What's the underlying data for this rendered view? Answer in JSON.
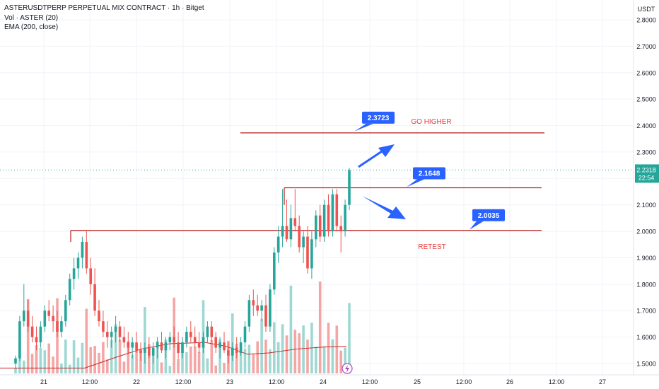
{
  "header": {
    "symbol_line": "ASTERUSDTPERP PERPETUAL MIX CONTRACT · 1h · Bitget",
    "volume_line": "Vol · ASTER (20)",
    "ema_line": "EMA (200, close)"
  },
  "price_axis": {
    "currency": "USDT",
    "last_price": "2.2318",
    "countdown": "22:54"
  },
  "colors": {
    "up": "#26a69a",
    "down": "#ef5350",
    "up_volume": "#9fd8d2",
    "down_volume": "#f4a6a5",
    "level_line": "#b71c1c",
    "callout": "#2962ff",
    "ema": "#c62828"
  },
  "annotations": [
    {
      "text": "2.3723",
      "kind": "callout"
    },
    {
      "text": "2.1648",
      "kind": "callout"
    },
    {
      "text": "2.0035",
      "kind": "callout"
    },
    {
      "text": "GO HIGHER",
      "kind": "note"
    },
    {
      "text": "RETEST",
      "kind": "note"
    }
  ],
  "chart_data": {
    "type": "candlestick",
    "title": "ASTERUSDTPERP PERPETUAL MIX CONTRACT · 1h · Bitget",
    "ylim": [
      1.46,
      2.85
    ],
    "y_ticks": [
      "2.8000",
      "2.7000",
      "2.6000",
      "2.5000",
      "2.4000",
      "2.3000",
      "2.2000",
      "2.1000",
      "2.0000",
      "1.9000",
      "1.8000",
      "1.7000",
      "1.6000",
      "1.5000"
    ],
    "x_ticks": [
      "21",
      "12:00",
      "22",
      "12:00",
      "23",
      "12:00",
      "24",
      "12:00",
      "25",
      "12:00",
      "26",
      "12:00",
      "27"
    ],
    "candles": [
      [
        1.5,
        1.53,
        1.48,
        1.52
      ],
      [
        1.52,
        1.68,
        1.51,
        1.66
      ],
      [
        1.66,
        1.8,
        1.64,
        1.7
      ],
      [
        1.7,
        1.74,
        1.62,
        1.64
      ],
      [
        1.64,
        1.68,
        1.58,
        1.6
      ],
      [
        1.6,
        1.64,
        1.55,
        1.58
      ],
      [
        1.58,
        1.66,
        1.56,
        1.64
      ],
      [
        1.64,
        1.72,
        1.62,
        1.7
      ],
      [
        1.7,
        1.74,
        1.66,
        1.68
      ],
      [
        1.68,
        1.72,
        1.62,
        1.66
      ],
      [
        1.66,
        1.7,
        1.6,
        1.62
      ],
      [
        1.62,
        1.68,
        1.6,
        1.66
      ],
      [
        1.66,
        1.76,
        1.64,
        1.74
      ],
      [
        1.74,
        1.84,
        1.72,
        1.82
      ],
      [
        1.82,
        1.9,
        1.78,
        1.86
      ],
      [
        1.86,
        1.92,
        1.82,
        1.9
      ],
      [
        1.9,
        1.98,
        1.86,
        1.96
      ],
      [
        1.96,
        2.0,
        1.84,
        1.86
      ],
      [
        1.86,
        1.9,
        1.76,
        1.8
      ],
      [
        1.8,
        1.86,
        1.68,
        1.7
      ],
      [
        1.7,
        1.74,
        1.64,
        1.66
      ],
      [
        1.66,
        1.7,
        1.6,
        1.62
      ],
      [
        1.62,
        1.66,
        1.56,
        1.6
      ],
      [
        1.6,
        1.64,
        1.56,
        1.62
      ],
      [
        1.62,
        1.68,
        1.58,
        1.64
      ],
      [
        1.64,
        1.66,
        1.58,
        1.6
      ],
      [
        1.6,
        1.64,
        1.56,
        1.58
      ],
      [
        1.58,
        1.62,
        1.54,
        1.56
      ],
      [
        1.56,
        1.6,
        1.52,
        1.58
      ],
      [
        1.58,
        1.62,
        1.54,
        1.55
      ],
      [
        1.55,
        1.58,
        1.51,
        1.54
      ],
      [
        1.54,
        1.58,
        1.5,
        1.56
      ],
      [
        1.56,
        1.6,
        1.52,
        1.53
      ],
      [
        1.53,
        1.58,
        1.5,
        1.56
      ],
      [
        1.56,
        1.6,
        1.52,
        1.58
      ],
      [
        1.58,
        1.62,
        1.54,
        1.55
      ],
      [
        1.55,
        1.6,
        1.52,
        1.58
      ],
      [
        1.58,
        1.62,
        1.55,
        1.6
      ],
      [
        1.6,
        1.64,
        1.56,
        1.58
      ],
      [
        1.58,
        1.62,
        1.52,
        1.54
      ],
      [
        1.54,
        1.6,
        1.52,
        1.58
      ],
      [
        1.58,
        1.64,
        1.56,
        1.62
      ],
      [
        1.62,
        1.66,
        1.58,
        1.6
      ],
      [
        1.6,
        1.64,
        1.56,
        1.58
      ],
      [
        1.58,
        1.62,
        1.54,
        1.56
      ],
      [
        1.56,
        1.62,
        1.54,
        1.6
      ],
      [
        1.6,
        1.66,
        1.58,
        1.64
      ],
      [
        1.64,
        1.66,
        1.58,
        1.6
      ],
      [
        1.6,
        1.62,
        1.54,
        1.56
      ],
      [
        1.56,
        1.6,
        1.52,
        1.58
      ],
      [
        1.58,
        1.62,
        1.54,
        1.55
      ],
      [
        1.55,
        1.58,
        1.5,
        1.53
      ],
      [
        1.53,
        1.58,
        1.51,
        1.56
      ],
      [
        1.56,
        1.6,
        1.52,
        1.54
      ],
      [
        1.54,
        1.6,
        1.53,
        1.58
      ],
      [
        1.58,
        1.66,
        1.56,
        1.64
      ],
      [
        1.64,
        1.76,
        1.62,
        1.74
      ],
      [
        1.74,
        1.78,
        1.68,
        1.72
      ],
      [
        1.72,
        1.76,
        1.68,
        1.7
      ],
      [
        1.7,
        1.74,
        1.66,
        1.72
      ],
      [
        1.72,
        1.76,
        1.62,
        1.64
      ],
      [
        1.64,
        1.8,
        1.62,
        1.78
      ],
      [
        1.78,
        1.94,
        1.76,
        1.92
      ],
      [
        1.92,
        2.02,
        1.88,
        1.98
      ],
      [
        1.98,
        2.16,
        1.94,
        2.02
      ],
      [
        2.02,
        2.12,
        1.96,
        1.97
      ],
      [
        1.97,
        2.1,
        1.94,
        2.05
      ],
      [
        2.05,
        2.16,
        2.0,
        2.02
      ],
      [
        2.02,
        2.06,
        1.92,
        1.94
      ],
      [
        1.94,
        2.0,
        1.88,
        1.98
      ],
      [
        1.98,
        2.02,
        1.84,
        1.86
      ],
      [
        1.86,
        2.0,
        1.82,
        1.97
      ],
      [
        1.97,
        2.08,
        1.94,
        2.06
      ],
      [
        2.06,
        2.1,
        1.96,
        1.98
      ],
      [
        1.98,
        2.12,
        1.96,
        2.1
      ],
      [
        2.1,
        2.14,
        1.98,
        2.0
      ],
      [
        2.0,
        2.16,
        1.98,
        2.14
      ],
      [
        2.14,
        2.16,
        2.0,
        2.02
      ],
      [
        2.02,
        2.06,
        1.92,
        2.0
      ],
      [
        2.0,
        2.12,
        1.98,
        2.1
      ],
      [
        2.1,
        2.24,
        2.08,
        2.2318
      ]
    ],
    "volume_note": "volume bars follow candle direction",
    "levels": [
      2.3723,
      2.1648,
      2.0035
    ],
    "last_price": 2.2318
  }
}
